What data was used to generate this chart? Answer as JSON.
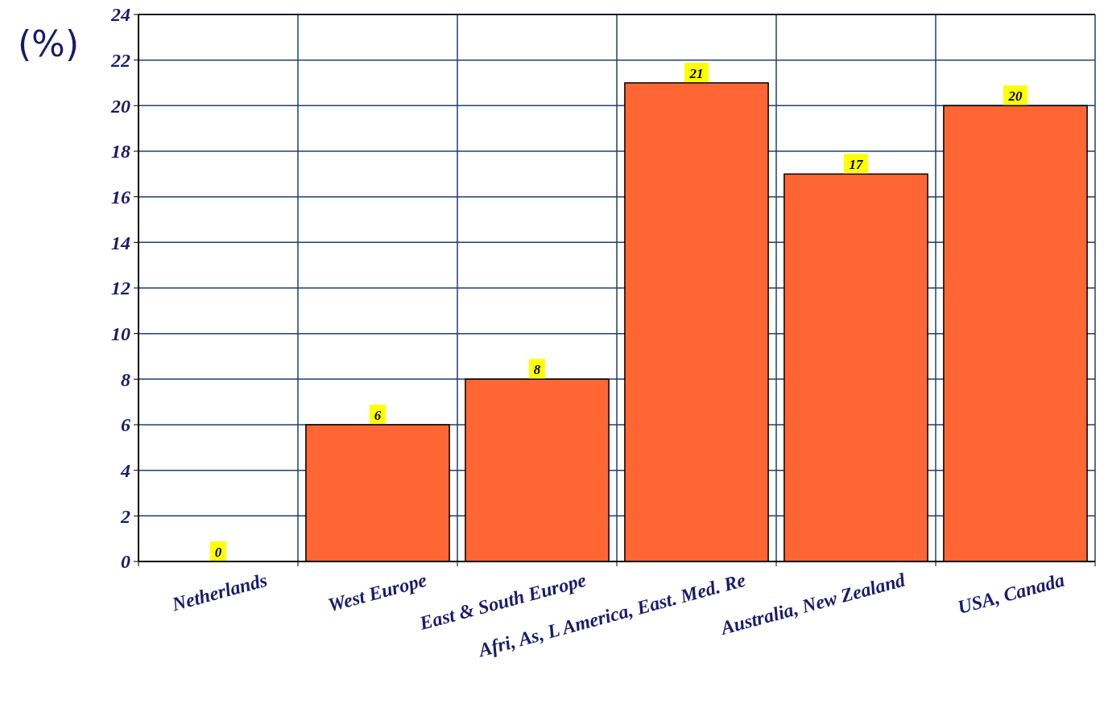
{
  "chart_data": {
    "type": "bar",
    "ylabel": "(%)",
    "categories": [
      "Netherlands",
      "West Europe",
      "East & South Europe",
      "Afri, As, L America,  East. Med. Re",
      "Australia, New Zealand",
      "USA, Canada"
    ],
    "values": [
      0,
      6,
      8,
      21,
      17,
      20
    ],
    "color": "#ff6633",
    "ylim": [
      0,
      24
    ],
    "yticks": [
      0,
      2,
      4,
      6,
      8,
      10,
      12,
      14,
      16,
      18,
      20,
      22,
      24
    ],
    "grid": true,
    "data_labels": true
  }
}
